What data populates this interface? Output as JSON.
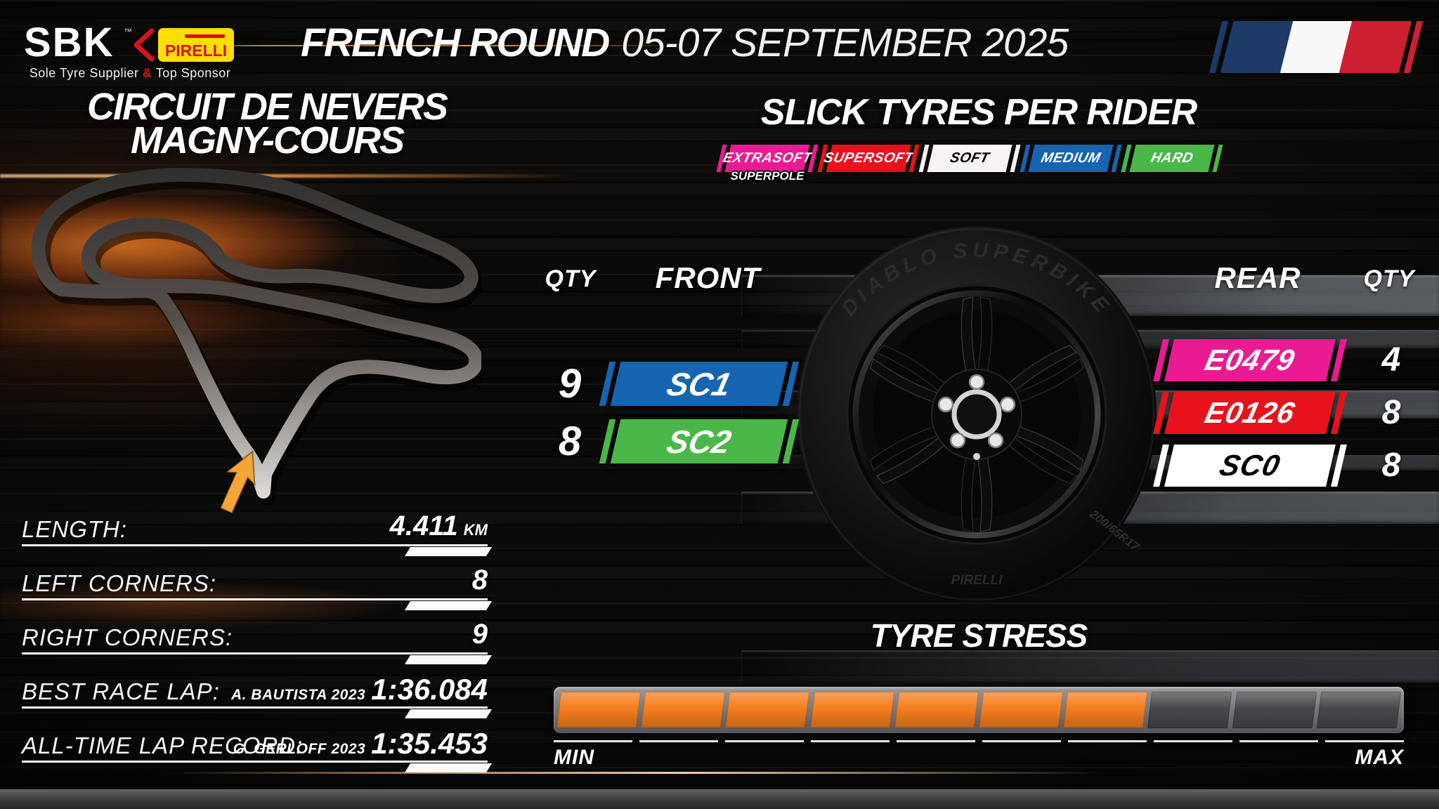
{
  "header": {
    "sbk_logo": "SBK",
    "sbk_trademark": "™",
    "chevron_icon": "red-left-chevron",
    "pirelli_logo": "PIRELLI",
    "tagline_part1": "Sole Tyre Supplier",
    "tagline_amp": "&",
    "tagline_part2": "Top Sponsor",
    "round_title": "FRENCH ROUND",
    "round_dates": "05-07 SEPTEMBER 2025",
    "flag": {
      "name": "france-flag",
      "blue": "#1E3A66",
      "white": "#F8F8F8",
      "red": "#CD2031"
    }
  },
  "circuit": {
    "title_line1": "CIRCUIT DE NEVERS",
    "title_line2": "MAGNY-COURS",
    "stats": [
      {
        "label": "LENGTH:",
        "value": "4.411",
        "unit": "KM"
      },
      {
        "label": "LEFT CORNERS:",
        "value": "8"
      },
      {
        "label": "RIGHT CORNERS:",
        "value": "9"
      },
      {
        "label": "BEST RACE LAP:",
        "holder": "A. BAUTISTA 2023",
        "value": "1:36.084"
      },
      {
        "label": "ALL-TIME LAP RECORD:",
        "holder": "G. GERLOFF 2023",
        "value": "1:35.453"
      }
    ]
  },
  "tyres": {
    "section_title": "SLICK TYRES PER RIDER",
    "compounds": [
      {
        "label": "EXTRASOFT",
        "sublabel": "SUPERPOLE",
        "color": "#EA1B92"
      },
      {
        "label": "SUPERSOFT",
        "color": "#E8121C"
      },
      {
        "label": "SOFT",
        "color": "#F6F2F6",
        "text": "#000000"
      },
      {
        "label": "MEDIUM",
        "color": "#1565B1"
      },
      {
        "label": "HARD",
        "color": "#4AB749"
      }
    ],
    "front": {
      "qty_header": "QTY",
      "header": "FRONT",
      "rows": [
        {
          "qty": "9",
          "code": "SC1",
          "color": "#1565B1"
        },
        {
          "qty": "8",
          "code": "SC2",
          "color": "#4AB749"
        }
      ]
    },
    "rear": {
      "header": "REAR",
      "qty_header": "QTY",
      "rows": [
        {
          "code": "E0479",
          "qty": "4",
          "color": "#EA1B92"
        },
        {
          "code": "E0126",
          "qty": "8",
          "color": "#E8121C"
        },
        {
          "code": "SC0",
          "qty": "8",
          "color": "#FFFFFF",
          "text": "#000000"
        }
      ]
    },
    "tyre_markings": {
      "model": "DIABLO SUPERBIKE",
      "size": "200/65R17",
      "brand": "PIRELLI"
    }
  },
  "stress": {
    "title": "TYRE STRESS",
    "min_label": "MIN",
    "max_label": "MAX",
    "segments_total": 10,
    "segments_filled": 7,
    "fill_color": "#F57E1E",
    "empty_color": "#47494C"
  }
}
